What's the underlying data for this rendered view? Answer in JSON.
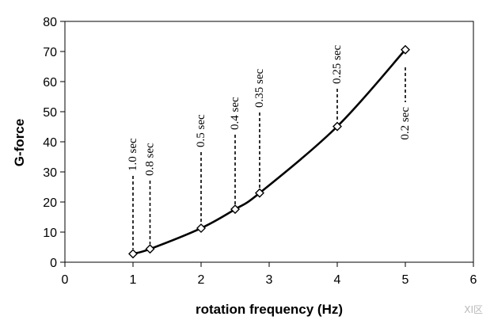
{
  "chart_data": {
    "type": "line",
    "xlabel": "rotation frequency (Hz)",
    "ylabel": "G-force",
    "xlim": [
      0,
      6
    ],
    "ylim": [
      0,
      80
    ],
    "x_ticks": [
      0,
      1,
      2,
      3,
      4,
      5,
      6
    ],
    "y_ticks": [
      0,
      10,
      20,
      30,
      40,
      50,
      60,
      70,
      80
    ],
    "grid": false,
    "legend": "none",
    "line_color": "#000000",
    "series": [
      {
        "x": [
          1.0,
          1.25,
          2.0,
          2.5,
          2.86,
          4.0,
          5.0
        ],
        "y": [
          2.8,
          4.4,
          11.3,
          17.6,
          23.0,
          45.1,
          70.6
        ]
      }
    ],
    "annotations": [
      {
        "label": "1.0 sec",
        "x": 1.0
      },
      {
        "label": "0.8 sec",
        "x": 1.25
      },
      {
        "label": "0.5 sec",
        "x": 2.0
      },
      {
        "label": "0.4 sec",
        "x": 2.5
      },
      {
        "label": "0.35 sec",
        "x": 2.86
      },
      {
        "label": "0.25 sec",
        "x": 4.0
      },
      {
        "label": "0.2 sec",
        "x": 5.0
      }
    ]
  },
  "watermark": "XI区"
}
